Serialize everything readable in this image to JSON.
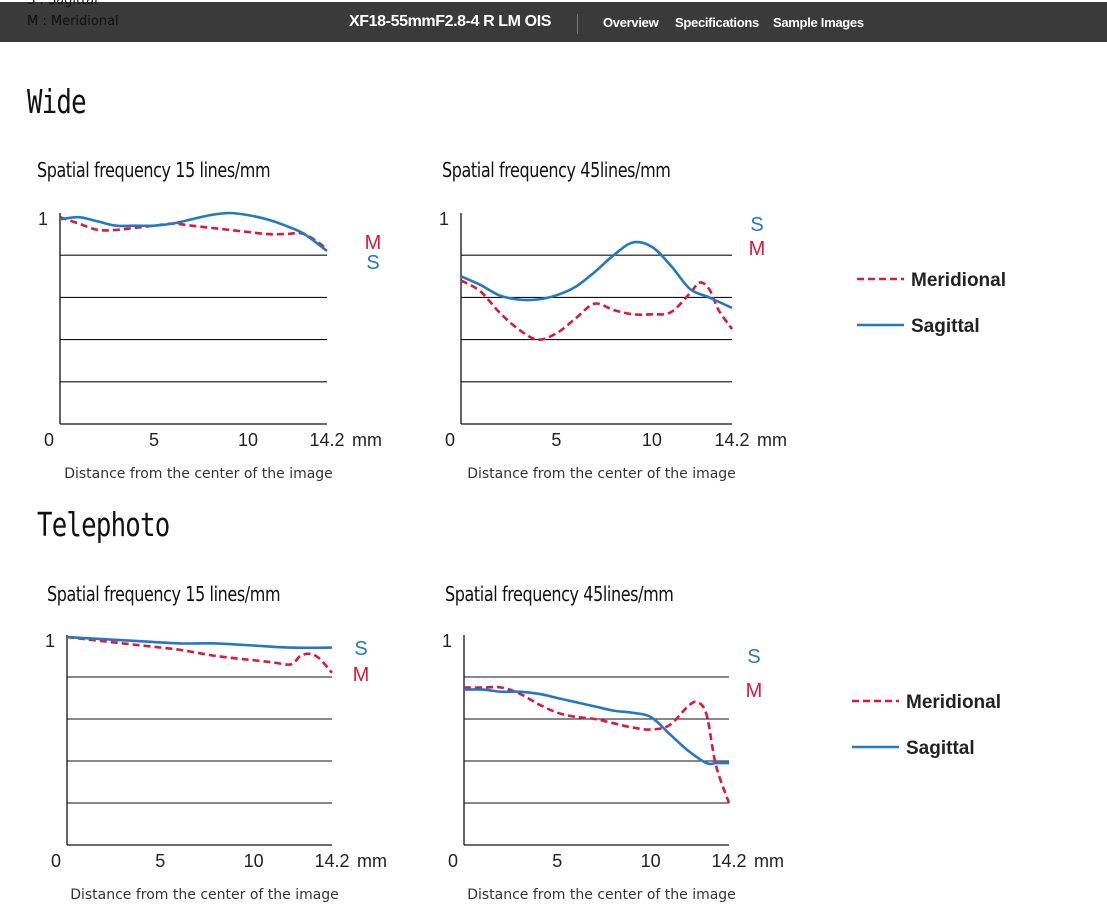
{
  "header": {
    "scroll_line1": "S : Sagittal",
    "scroll_line2": "M : Meridional",
    "title": "XF18-55mmF2.8-4 R LM OIS",
    "nav": [
      "Overview",
      "Specifications",
      "Sample Images"
    ]
  },
  "colors": {
    "meridional": "#e0173a",
    "sagittal": "#2178c5",
    "header_bg": "#3a3a3a"
  },
  "sections": [
    "Wide",
    "Telephoto"
  ],
  "legend": {
    "meridional": "Meridional",
    "sagittal": "Sagittal"
  },
  "chart_data": [
    {
      "type": "line",
      "section": "Wide",
      "title": "Spatial frequency 15 lines/mm",
      "xlabel": "Distance from the center of the image",
      "x_unit": "mm",
      "xlim": [
        0,
        14.2
      ],
      "ylim": [
        0,
        1
      ],
      "x_ticks": [
        "0",
        "5",
        "10",
        "14.2"
      ],
      "y_ticks": [
        "1"
      ],
      "gridlines_y": [
        0.2,
        0.4,
        0.6,
        0.8
      ],
      "series": [
        {
          "name": "M",
          "style": "dashed",
          "x": [
            0,
            1,
            2,
            3,
            4,
            5,
            6,
            7,
            8,
            9,
            10,
            11,
            12,
            13,
            14.2
          ],
          "y": [
            0.98,
            0.95,
            0.92,
            0.92,
            0.93,
            0.94,
            0.95,
            0.94,
            0.93,
            0.92,
            0.91,
            0.9,
            0.9,
            0.9,
            0.83
          ]
        },
        {
          "name": "S",
          "style": "solid",
          "x": [
            0,
            1,
            2,
            3,
            4,
            5,
            6,
            7,
            8,
            9,
            10,
            11,
            12,
            13,
            14.2
          ],
          "y": [
            0.97,
            0.98,
            0.96,
            0.94,
            0.94,
            0.94,
            0.95,
            0.97,
            0.99,
            1.0,
            0.99,
            0.97,
            0.94,
            0.9,
            0.82
          ]
        }
      ],
      "end_labels_order": [
        "M",
        "S"
      ]
    },
    {
      "type": "line",
      "section": "Wide",
      "title": "Spatial frequency 45lines/mm",
      "xlabel": "Distance from the center of the image",
      "x_unit": "mm",
      "xlim": [
        0,
        14.2
      ],
      "ylim": [
        0,
        1
      ],
      "x_ticks": [
        "0",
        "5",
        "10",
        "14.2"
      ],
      "y_ticks": [
        "1"
      ],
      "gridlines_y": [
        0.2,
        0.4,
        0.6,
        0.8
      ],
      "series": [
        {
          "name": "M",
          "style": "dashed",
          "x": [
            0,
            1,
            2,
            3,
            4,
            5,
            6,
            7,
            8,
            9,
            10,
            11,
            12,
            12.5,
            13,
            13.5,
            14.2
          ],
          "y": [
            0.68,
            0.63,
            0.53,
            0.45,
            0.4,
            0.43,
            0.5,
            0.57,
            0.54,
            0.52,
            0.52,
            0.53,
            0.62,
            0.67,
            0.64,
            0.54,
            0.45
          ]
        },
        {
          "name": "S",
          "style": "solid",
          "x": [
            0,
            1,
            2,
            3,
            4,
            5,
            6,
            7,
            8,
            9,
            10,
            11,
            12,
            13,
            14.2
          ],
          "y": [
            0.7,
            0.66,
            0.61,
            0.59,
            0.59,
            0.61,
            0.65,
            0.72,
            0.8,
            0.86,
            0.84,
            0.75,
            0.64,
            0.6,
            0.55
          ]
        }
      ],
      "end_labels_order": [
        "S",
        "M"
      ]
    },
    {
      "type": "line",
      "section": "Telephoto",
      "title": "Spatial frequency 15 lines/mm",
      "xlabel": "Distance from the center of the image",
      "x_unit": "mm",
      "xlim": [
        0,
        14.2
      ],
      "ylim": [
        0,
        1
      ],
      "x_ticks": [
        "0",
        "5",
        "10",
        "14.2"
      ],
      "y_ticks": [
        "1"
      ],
      "gridlines_y": [
        0.2,
        0.4,
        0.6,
        0.8
      ],
      "series": [
        {
          "name": "M",
          "style": "dashed",
          "x": [
            0,
            2,
            4,
            6,
            8,
            10,
            11,
            12,
            12.5,
            13,
            13.5,
            14.2
          ],
          "y": [
            0.99,
            0.97,
            0.95,
            0.93,
            0.9,
            0.88,
            0.87,
            0.86,
            0.9,
            0.91,
            0.89,
            0.82
          ]
        },
        {
          "name": "S",
          "style": "solid",
          "x": [
            0,
            2,
            4,
            6,
            8,
            10,
            12,
            14.2
          ],
          "y": [
            0.99,
            0.98,
            0.97,
            0.96,
            0.96,
            0.95,
            0.94,
            0.94
          ]
        }
      ],
      "end_labels_order": [
        "S",
        "M"
      ]
    },
    {
      "type": "line",
      "section": "Telephoto",
      "title": "Spatial frequency 45lines/mm",
      "xlabel": "Distance from the center of the image",
      "x_unit": "mm",
      "xlim": [
        0,
        14.2
      ],
      "ylim": [
        0,
        1
      ],
      "x_ticks": [
        "0",
        "5",
        "10",
        "14.2"
      ],
      "y_ticks": [
        "1"
      ],
      "gridlines_y": [
        0.2,
        0.4,
        0.6,
        0.8
      ],
      "series": [
        {
          "name": "M",
          "style": "dashed",
          "x": [
            0,
            1,
            2,
            3,
            4,
            5,
            6,
            7,
            8,
            9,
            10,
            11,
            12,
            12.5,
            13,
            13.5,
            14.2
          ],
          "y": [
            0.75,
            0.75,
            0.75,
            0.72,
            0.67,
            0.63,
            0.61,
            0.6,
            0.58,
            0.56,
            0.55,
            0.57,
            0.66,
            0.68,
            0.62,
            0.38,
            0.2
          ]
        },
        {
          "name": "S",
          "style": "solid",
          "x": [
            0,
            1,
            2,
            3,
            4,
            5,
            6,
            7,
            8,
            9,
            10,
            11,
            12,
            13,
            13.5,
            14.2
          ],
          "y": [
            0.74,
            0.74,
            0.73,
            0.73,
            0.72,
            0.7,
            0.68,
            0.66,
            0.64,
            0.63,
            0.61,
            0.53,
            0.45,
            0.39,
            0.39,
            0.39
          ]
        }
      ],
      "end_labels_order": [
        "S",
        "M"
      ]
    }
  ]
}
